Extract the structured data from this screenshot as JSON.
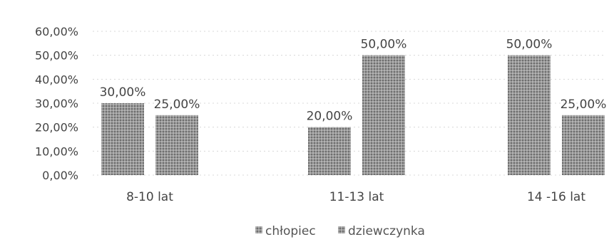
{
  "chart_data": {
    "type": "bar",
    "categories": [
      "8-10 lat",
      "11-13 lat",
      "14 -16 lat"
    ],
    "series": [
      {
        "name": "chłopiec",
        "values": [
          30,
          20,
          50
        ],
        "labels": [
          "30,00%",
          "20,00%",
          "50,00%"
        ],
        "color": "#8a8a8a"
      },
      {
        "name": "dziewczynka",
        "values": [
          25,
          50,
          25
        ],
        "labels": [
          "25,00%",
          "50,00%",
          "25,00%"
        ],
        "color": "#7d7d7d"
      }
    ],
    "y_ticks": [
      "0,00%",
      "10,00%",
      "20,00%",
      "30,00%",
      "40,00%",
      "50,00%",
      "60,00%"
    ],
    "ylim": [
      0,
      60
    ],
    "grid": true,
    "legend_position": "bottom",
    "title": "",
    "xlabel": "",
    "ylabel": ""
  }
}
